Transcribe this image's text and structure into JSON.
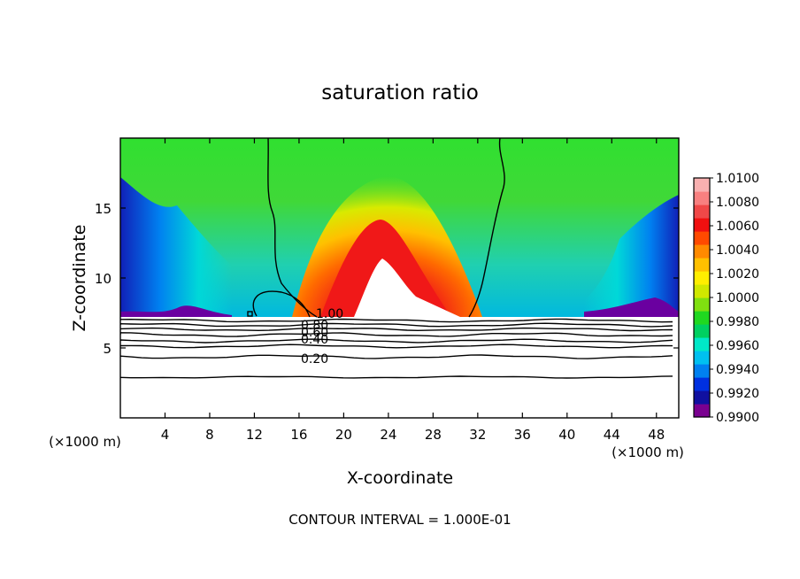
{
  "chart_data": {
    "type": "heatmap",
    "title": "saturation ratio",
    "xlabel": "X-coordinate",
    "ylabel": "Z-coordinate",
    "x_unit_left": "(×1000 m)",
    "x_unit_right": "(×1000 m)",
    "xlim": [
      0,
      50
    ],
    "ylim": [
      0,
      20
    ],
    "xticks": [
      4,
      8,
      12,
      16,
      20,
      24,
      28,
      32,
      36,
      40,
      44,
      48
    ],
    "yticks": [
      5,
      10,
      15
    ],
    "colorbar": {
      "min": 0.99,
      "max": 1.01,
      "tick_labels": [
        "1.0100",
        "1.0080",
        "1.0060",
        "1.0040",
        "1.0020",
        "1.0000",
        "0.9980",
        "0.9960",
        "0.9940",
        "0.9920",
        "0.9900"
      ],
      "colors": [
        "#7a0090",
        "#1010a0",
        "#0030e0",
        "#0080f0",
        "#00c0f0",
        "#00e8c8",
        "#00d060",
        "#20d820",
        "#80e010",
        "#d0e800",
        "#ffee00",
        "#ffc000",
        "#ff8a00",
        "#ff4a00",
        "#f01010",
        "#f04848",
        "#f88080",
        "#f8b0b0"
      ]
    },
    "contour_labels": [
      "1.00",
      "0.80",
      "0.60",
      "0.40",
      "0.20"
    ],
    "contour_interval_text": "CONTOUR INTERVAL = 1.000E-01"
  }
}
